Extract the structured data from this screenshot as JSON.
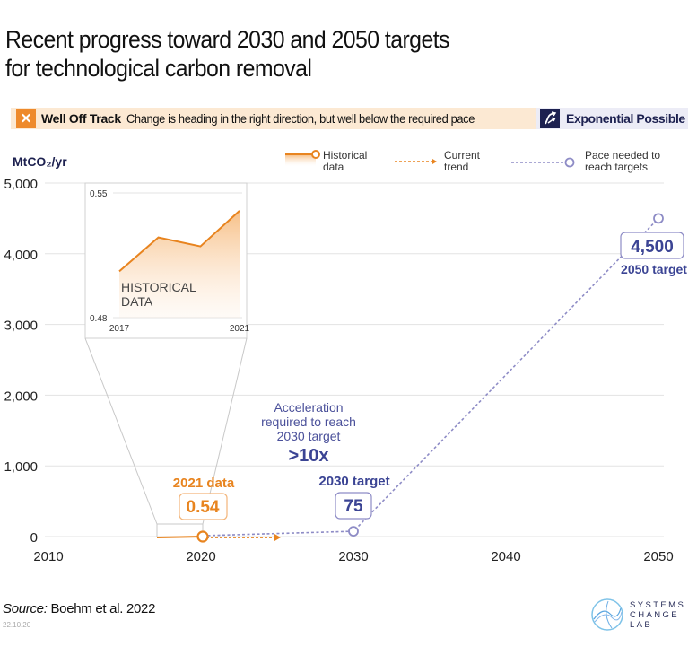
{
  "title": [
    "Recent progress toward 2030 and 2050 targets",
    "for technological carbon removal"
  ],
  "status": {
    "icon": "x-icon",
    "label": "Well Off Track",
    "description": "Change is heading in the right direction, but well below the required pace",
    "badge_label": "Exponential Possible",
    "badge_icon": "exponential-arrow-icon"
  },
  "colors": {
    "historical": "#e8841f",
    "target": "#3b4494",
    "pace": "#8e8cc6",
    "status_bg": "#fce9d3",
    "grid": "#e3e3e3"
  },
  "chart_data": {
    "type": "line",
    "ylabel": "MtCO₂/yr",
    "ylim": [
      0,
      5000
    ],
    "xlim": [
      2010,
      2050
    ],
    "x_ticks": [
      2010,
      2020,
      2030,
      2040,
      2050
    ],
    "y_ticks": [
      0,
      1000,
      2000,
      3000,
      4000,
      5000
    ],
    "y_tick_labels": [
      "0",
      "1,000",
      "2,000",
      "3,000",
      "4,000",
      "5,000"
    ],
    "grid": true,
    "legend": [
      {
        "name": "Historical data",
        "lines": [
          "Historical",
          "data"
        ],
        "style": "solid-with-circle"
      },
      {
        "name": "Current trend",
        "lines": [
          "Current",
          "trend"
        ],
        "style": "dashed-arrow"
      },
      {
        "name": "Pace needed to reach targets",
        "lines": [
          "Pace needed to",
          "reach targets"
        ],
        "style": "dashed-with-circle"
      }
    ],
    "legend_position": "top",
    "series": [
      {
        "name": "Historical data",
        "x": [
          2017,
          2018.3,
          2019.7,
          2021
        ],
        "y": [
          0.506,
          0.525,
          0.52,
          0.54
        ]
      },
      {
        "name": "Current trend",
        "x": [
          2021,
          2025
        ],
        "y": [
          0.54,
          1.0
        ]
      },
      {
        "name": "Pace needed to reach targets",
        "x": [
          2021,
          2030,
          2050
        ],
        "y": [
          0.54,
          75,
          4500
        ]
      }
    ],
    "inset": {
      "title": [
        "HISTORICAL",
        "DATA"
      ],
      "ylim": [
        0.48,
        0.55
      ],
      "y_tick_labels": [
        "0.48",
        "0.55"
      ],
      "x_tick_labels": [
        "2017",
        "2021"
      ]
    },
    "annotations": {
      "data_2021_label": "2021 data",
      "data_2021_value": "0.54",
      "target_2030_label": "2030 target",
      "target_2030_value": "75",
      "target_2050_label": "2050 target",
      "target_2050_value": "4,500",
      "acceleration_lines": [
        "Acceleration",
        "required to reach",
        "2030 target"
      ],
      "acceleration_value": ">10x"
    }
  },
  "footer": {
    "source_prefix": "Source:",
    "source_text": " Boehm et al. 2022",
    "date": "22.10.20",
    "logo_lines": [
      "SYSTEMS",
      "CHANGE",
      "LAB"
    ]
  }
}
